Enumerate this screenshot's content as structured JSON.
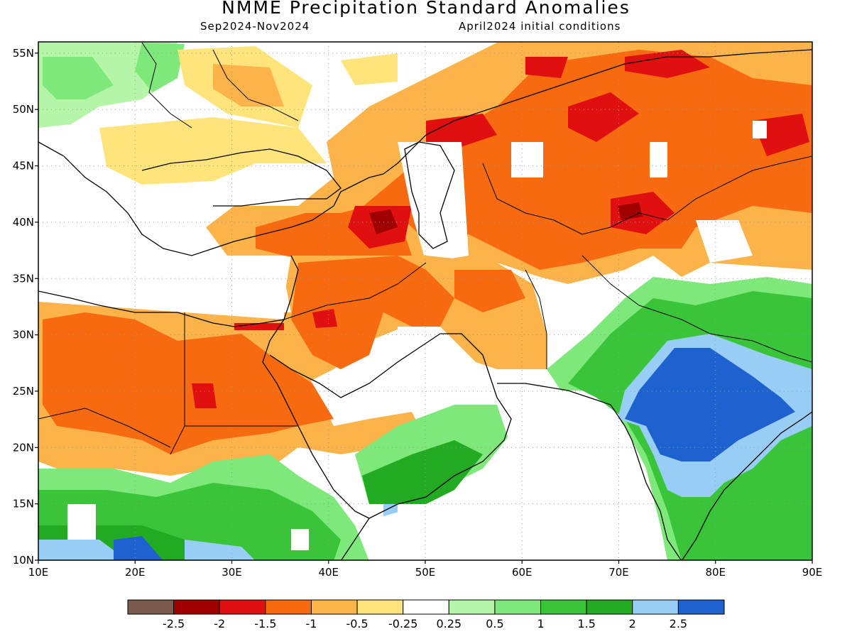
{
  "header": {
    "title": "NMME Precipitation Standard Anomalies",
    "period": "Sep2024-Nov2024",
    "init": "April2024 initial conditions"
  },
  "axes": {
    "lon_labels": [
      "10E",
      "20E",
      "30E",
      "40E",
      "50E",
      "60E",
      "70E",
      "80E",
      "90E"
    ],
    "lat_labels": [
      "10N",
      "15N",
      "20N",
      "25N",
      "30N",
      "35N",
      "40N",
      "45N",
      "50N",
      "55N"
    ]
  },
  "colorbar": {
    "colors": [
      "#7a5a4a",
      "#a00000",
      "#e01010",
      "#f76a10",
      "#fbb34a",
      "#fee47a",
      "#ffffff",
      "#b5f5a8",
      "#7ee87a",
      "#3ac43a",
      "#22aa22",
      "#98cdf5",
      "#1e62d0"
    ],
    "labels": [
      "-2.5",
      "-2",
      "-1.5",
      "-1",
      "-0.5",
      "-0.25",
      "0.25",
      "0.5",
      "1",
      "1.5",
      "2",
      "2.5"
    ]
  },
  "palette": {
    "border": "#000000",
    "grid": "#aaaaaa"
  }
}
